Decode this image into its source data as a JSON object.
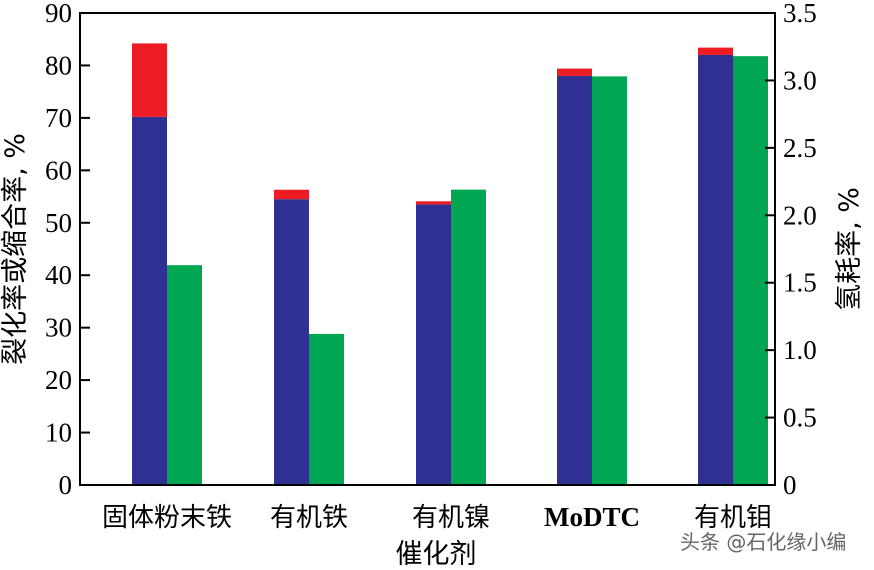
{
  "chart_data": {
    "type": "bar",
    "categories": [
      "固体粉末铁",
      "有机铁",
      "有机镍",
      "MoDTC",
      "有机钼"
    ],
    "xlabel": "催化剂",
    "ylabel_left": "裂化率或缩合率, %",
    "ylabel_right": "氢耗率, %",
    "ylim_left": [
      0,
      90
    ],
    "ylim_right": [
      0,
      3.5
    ],
    "yticks_left": [
      "0",
      "10",
      "20",
      "30",
      "40",
      "50",
      "60",
      "70",
      "80",
      "90"
    ],
    "yticks_right": [
      "0",
      "0.5",
      "1.0",
      "1.5",
      "2.0",
      "2.5",
      "3.0",
      "3.5"
    ],
    "series": [
      {
        "axis": "left",
        "stack": "left",
        "color": "#2E3192",
        "values": [
          70.2,
          54.5,
          53.5,
          78.0,
          82.0
        ]
      },
      {
        "axis": "left",
        "stack": "left",
        "color": "#ED1C24",
        "values": [
          14.0,
          1.8,
          0.6,
          1.4,
          1.4
        ]
      },
      {
        "axis": "right",
        "stack": "right",
        "color": "#00A651",
        "values": [
          1.63,
          1.12,
          2.19,
          3.03,
          3.18
        ]
      }
    ],
    "grid": false
  },
  "watermark": "头条 @石化缘小编"
}
